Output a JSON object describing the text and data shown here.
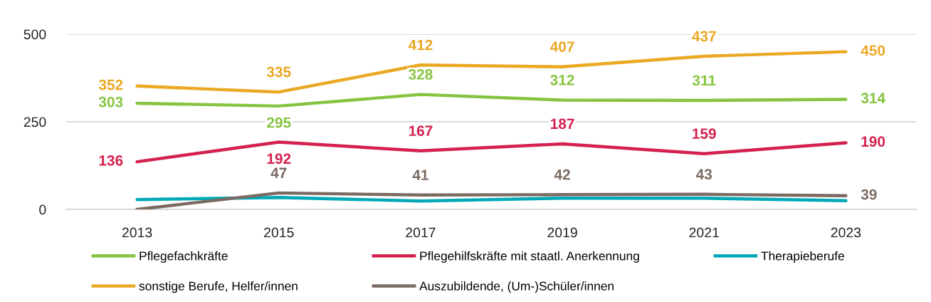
{
  "chart_data": {
    "type": "line",
    "categories": [
      "2013",
      "2015",
      "2017",
      "2019",
      "2021",
      "2023"
    ],
    "ylim": [
      0,
      500
    ],
    "yticks": [
      0,
      250,
      500
    ],
    "grid": "y",
    "legend": "bottom",
    "series": [
      {
        "name": "Pflegefachkräfte",
        "color": "#86c440",
        "values": [
          303,
          295,
          328,
          312,
          311,
          314
        ],
        "value_labels": [
          "303",
          "295",
          "328",
          "312",
          "311",
          "314"
        ]
      },
      {
        "name": "Pflegehilfskräfte mit staatl. Anerkennung",
        "color": "#d4214f",
        "values": [
          136,
          192,
          167,
          187,
          159,
          190
        ],
        "value_labels": [
          "136",
          "192",
          "167",
          "187",
          "159",
          "190"
        ]
      },
      {
        "name": "Therapieberufe",
        "color": "#00a9b8",
        "values": [
          28,
          34,
          24,
          32,
          32,
          25
        ]
      },
      {
        "name": "sonstige Berufe, Helfer/innen",
        "color": "#eaa823",
        "values": [
          352,
          335,
          412,
          407,
          437,
          450
        ],
        "value_labels": [
          "352",
          "335",
          "412",
          "407",
          "437",
          "450"
        ]
      },
      {
        "name": "Auszubildende, (Um-)Schüler/innen",
        "color": "#7b6a62",
        "values": [
          0,
          47,
          41,
          42,
          43,
          39
        ],
        "value_labels": [
          null,
          "47",
          "41",
          "42",
          "43",
          "39"
        ]
      }
    ]
  }
}
